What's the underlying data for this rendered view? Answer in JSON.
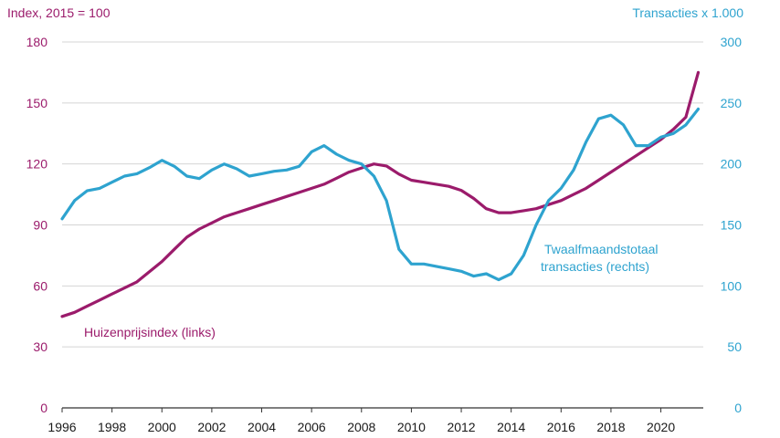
{
  "chart_data": {
    "type": "line",
    "left_axis": {
      "title": "Index, 2015 = 100",
      "ylim": [
        0,
        180
      ],
      "ticks": [
        0,
        30,
        60,
        90,
        120,
        150,
        180
      ],
      "color": "#9b1b6b"
    },
    "right_axis": {
      "title": "Transacties x 1.000",
      "ylim": [
        0,
        300
      ],
      "ticks": [
        0,
        50,
        100,
        150,
        200,
        250,
        300
      ],
      "color": "#2ea3cf"
    },
    "x_axis": {
      "xlim": [
        1996,
        2021.7
      ],
      "ticks": [
        1996,
        1998,
        2000,
        2002,
        2004,
        2006,
        2008,
        2010,
        2012,
        2014,
        2016,
        2018,
        2020
      ]
    },
    "grid": true,
    "series": [
      {
        "name": "Huizenprijsindex (links)",
        "axis": "left",
        "color": "#9b1b6b",
        "x": [
          1996.0,
          1996.5,
          1997.0,
          1997.5,
          1998.0,
          1998.5,
          1999.0,
          1999.5,
          2000.0,
          2000.5,
          2001.0,
          2001.5,
          2002.0,
          2002.5,
          2003.0,
          2003.5,
          2004.0,
          2004.5,
          2005.0,
          2005.5,
          2006.0,
          2006.5,
          2007.0,
          2007.5,
          2008.0,
          2008.5,
          2009.0,
          2009.5,
          2010.0,
          2010.5,
          2011.0,
          2011.5,
          2012.0,
          2012.5,
          2013.0,
          2013.5,
          2014.0,
          2014.5,
          2015.0,
          2015.5,
          2016.0,
          2016.5,
          2017.0,
          2017.5,
          2018.0,
          2018.5,
          2019.0,
          2019.5,
          2020.0,
          2020.5,
          2021.0,
          2021.5
        ],
        "values": [
          45,
          47,
          50,
          53,
          56,
          59,
          62,
          67,
          72,
          78,
          84,
          88,
          91,
          94,
          96,
          98,
          100,
          102,
          104,
          106,
          108,
          110,
          113,
          116,
          118,
          120,
          119,
          115,
          112,
          111,
          110,
          109,
          107,
          103,
          98,
          96,
          96,
          97,
          98,
          100,
          102,
          105,
          108,
          112,
          116,
          120,
          124,
          128,
          132,
          137,
          143,
          165
        ]
      },
      {
        "name": "Twaalfmaandstotaal transacties (rechts)",
        "axis": "right",
        "color": "#2ea3cf",
        "x": [
          1996.0,
          1996.5,
          1997.0,
          1997.5,
          1998.0,
          1998.5,
          1999.0,
          1999.5,
          2000.0,
          2000.5,
          2001.0,
          2001.5,
          2002.0,
          2002.5,
          2003.0,
          2003.5,
          2004.0,
          2004.5,
          2005.0,
          2005.5,
          2006.0,
          2006.5,
          2007.0,
          2007.5,
          2008.0,
          2008.5,
          2009.0,
          2009.5,
          2010.0,
          2010.5,
          2011.0,
          2011.5,
          2012.0,
          2012.5,
          2013.0,
          2013.5,
          2014.0,
          2014.5,
          2015.0,
          2015.5,
          2016.0,
          2016.5,
          2017.0,
          2017.5,
          2018.0,
          2018.5,
          2019.0,
          2019.5,
          2020.0,
          2020.5,
          2021.0,
          2021.5
        ],
        "values": [
          155,
          170,
          178,
          180,
          185,
          190,
          192,
          197,
          203,
          198,
          190,
          188,
          195,
          200,
          196,
          190,
          192,
          194,
          195,
          198,
          210,
          215,
          208,
          203,
          200,
          190,
          170,
          130,
          118,
          118,
          116,
          114,
          112,
          108,
          110,
          105,
          110,
          125,
          150,
          170,
          180,
          195,
          218,
          237,
          240,
          232,
          215,
          215,
          222,
          225,
          232,
          245
        ]
      }
    ],
    "annotations": [
      {
        "text": "Huizenprijsindex (links)",
        "series": "left"
      },
      {
        "text": "Twaalfmaandstotaal",
        "series": "right"
      },
      {
        "text": "transacties (rechts)",
        "series": "right"
      }
    ]
  }
}
